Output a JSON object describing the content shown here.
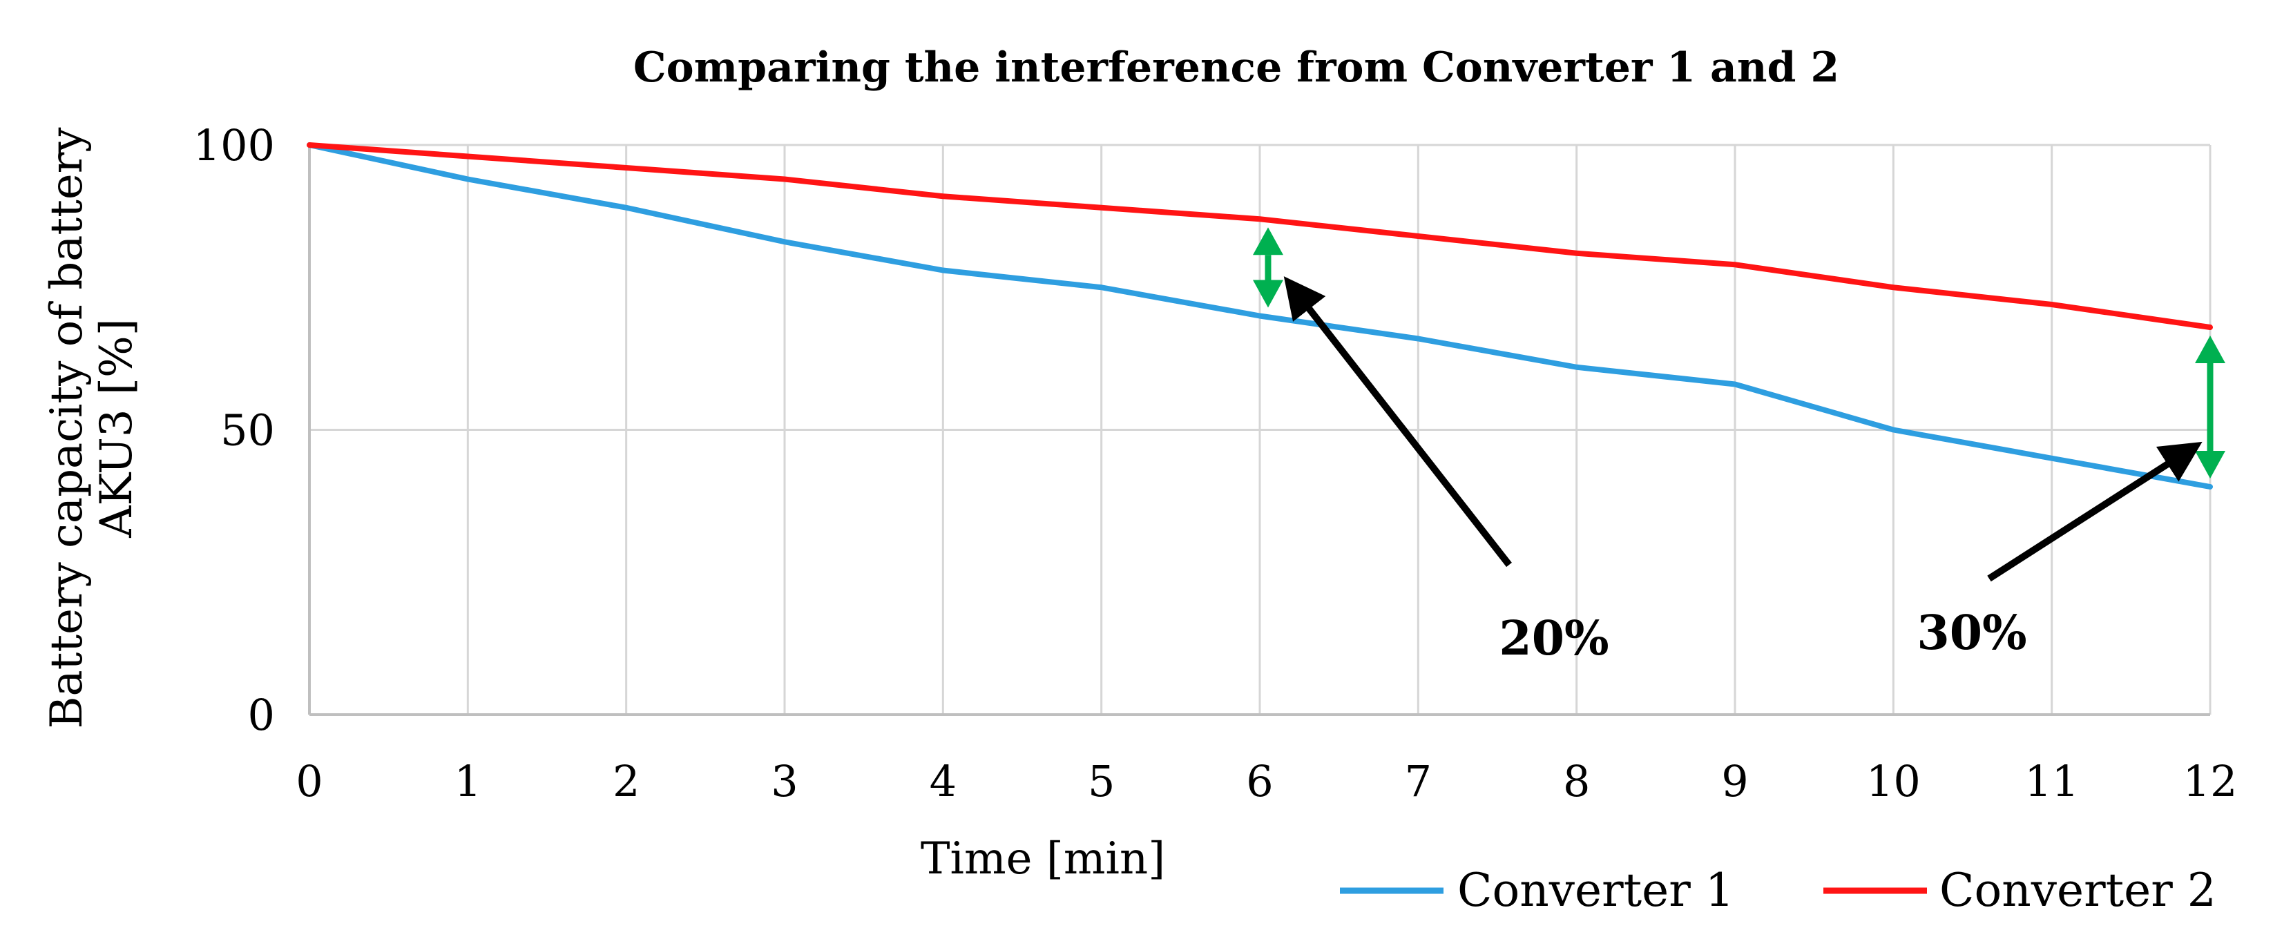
{
  "chart_data": {
    "type": "line",
    "title": "Comparing the interference from Converter 1 and 2",
    "xlabel": "Time [min]",
    "ylabel_line1": "Battery capacity of battery",
    "ylabel_line2": "AKU3  [%]",
    "x": [
      0,
      1,
      2,
      3,
      4,
      5,
      6,
      7,
      8,
      9,
      10,
      11,
      12
    ],
    "x_tick_labels": [
      "0",
      "1",
      "2",
      "3",
      "4",
      "5",
      "6",
      "7",
      "8",
      "9",
      "10",
      "11",
      "12"
    ],
    "y_tick_labels": [
      "0",
      "50",
      "100"
    ],
    "y_ticks": [
      0,
      50,
      100
    ],
    "xlim": [
      0,
      12
    ],
    "ylim": [
      0,
      100
    ],
    "grid": true,
    "legend_position": "bottom-right",
    "series": [
      {
        "name": "Converter 1",
        "color": "#2e9ee0",
        "values": [
          100,
          94,
          89,
          83,
          78,
          75,
          70,
          66,
          61,
          58,
          50,
          45,
          40
        ]
      },
      {
        "name": "Converter 2",
        "color": "#ff1414",
        "values": [
          100,
          98,
          96,
          94,
          91,
          89,
          87,
          84,
          81,
          79,
          75,
          72,
          68
        ]
      }
    ],
    "annotations": [
      {
        "label": "20%",
        "x": 6,
        "from": 70,
        "to": 87,
        "arrow_color": "#00b050"
      },
      {
        "label": "30%",
        "x": 12,
        "from": 40,
        "to": 68,
        "arrow_color": "#00b050"
      }
    ]
  }
}
